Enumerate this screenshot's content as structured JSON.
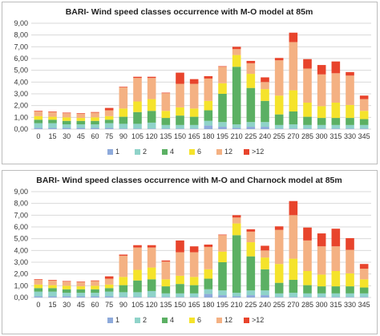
{
  "colors": {
    "1": "#8eaadb",
    "2": "#8fd3c9",
    "4": "#5bb063",
    "6": "#f5e32b",
    "12": "#f4b183",
    ">12": "#e8442c"
  },
  "chart_data": [
    {
      "type": "bar",
      "stacked": true,
      "title": "BARI- Wind speed classes occurrence with M-O model at 85m",
      "categories": [
        "0",
        "15",
        "30",
        "45",
        "60",
        "75",
        "90",
        "105",
        "120",
        "135",
        "150",
        "165",
        "180",
        "195",
        "210",
        "225",
        "240",
        "255",
        "270",
        "285",
        "300",
        "315",
        "330",
        "345"
      ],
      "ylim": [
        0,
        9
      ],
      "yticks": [
        "0,00",
        "1,00",
        "2,00",
        "3,00",
        "4,00",
        "5,00",
        "6,00",
        "7,00",
        "8,00",
        "9,00"
      ],
      "grid": true,
      "legend": "bottom",
      "series": [
        {
          "name": "1",
          "values": [
            0.1,
            0.1,
            0.1,
            0.1,
            0.1,
            0.1,
            0.05,
            0.05,
            0.05,
            0.05,
            0.05,
            0.05,
            0.3,
            0.2,
            0.1,
            0.2,
            0.2,
            0.05,
            0.05,
            0.05,
            0.05,
            0.05,
            0.05,
            0.05
          ]
        },
        {
          "name": "2",
          "values": [
            0.4,
            0.4,
            0.3,
            0.3,
            0.3,
            0.4,
            0.4,
            0.4,
            0.5,
            0.3,
            0.3,
            0.3,
            0.4,
            0.4,
            0.3,
            0.4,
            0.4,
            0.3,
            0.35,
            0.3,
            0.3,
            0.3,
            0.3,
            0.3
          ]
        },
        {
          "name": "4",
          "values": [
            0.3,
            0.3,
            0.3,
            0.3,
            0.3,
            0.3,
            0.6,
            1.0,
            1.0,
            0.6,
            0.8,
            0.7,
            0.9,
            2.4,
            4.9,
            2.9,
            1.8,
            0.9,
            1.1,
            0.7,
            0.6,
            0.6,
            0.6,
            0.5
          ]
        },
        {
          "name": "6",
          "values": [
            0.3,
            0.25,
            0.3,
            0.25,
            0.3,
            0.3,
            0.7,
            0.9,
            1.0,
            0.6,
            0.7,
            0.7,
            0.8,
            0.9,
            1.0,
            1.2,
            1.0,
            1.6,
            1.8,
            1.2,
            1.0,
            1.3,
            1.1,
            0.7
          ]
        },
        {
          "name": "12",
          "values": [
            0.4,
            0.4,
            0.35,
            0.35,
            0.4,
            0.5,
            1.8,
            2.0,
            1.8,
            1.5,
            2.0,
            2.1,
            1.9,
            1.4,
            0.5,
            0.9,
            0.6,
            3.0,
            4.1,
            2.9,
            2.7,
            2.5,
            2.5,
            1.0
          ]
        },
        {
          "name": ">12",
          "values": [
            0.05,
            0.05,
            0.05,
            0.05,
            0.05,
            0.2,
            0.05,
            0.1,
            0.1,
            0.05,
            0.95,
            0.4,
            0.2,
            0.05,
            0.2,
            0.2,
            0.4,
            0.2,
            0.8,
            0.8,
            0.8,
            1.0,
            0.3,
            0.3
          ]
        }
      ]
    },
    {
      "type": "bar",
      "stacked": true,
      "title": "BARI- Wind speed classes occurrence with M-O and Charnock model at 85m",
      "categories": [
        "0",
        "15",
        "30",
        "45",
        "60",
        "75",
        "90",
        "105",
        "120",
        "135",
        "150",
        "165",
        "180",
        "195",
        "210",
        "225",
        "240",
        "255",
        "270",
        "285",
        "300",
        "315",
        "330",
        "345"
      ],
      "ylim": [
        0,
        9
      ],
      "yticks": [
        "0,00",
        "1,00",
        "2,00",
        "3,00",
        "4,00",
        "5,00",
        "6,00",
        "7,00",
        "8,00",
        "9,00"
      ],
      "grid": true,
      "legend": "bottom",
      "series": [
        {
          "name": "1",
          "values": [
            0.1,
            0.1,
            0.1,
            0.1,
            0.1,
            0.1,
            0.05,
            0.05,
            0.05,
            0.05,
            0.05,
            0.05,
            0.3,
            0.2,
            0.1,
            0.2,
            0.2,
            0.05,
            0.05,
            0.05,
            0.05,
            0.05,
            0.05,
            0.05
          ]
        },
        {
          "name": "2",
          "values": [
            0.4,
            0.4,
            0.3,
            0.3,
            0.3,
            0.4,
            0.4,
            0.4,
            0.5,
            0.3,
            0.3,
            0.3,
            0.4,
            0.4,
            0.3,
            0.4,
            0.4,
            0.3,
            0.35,
            0.3,
            0.3,
            0.3,
            0.3,
            0.3
          ]
        },
        {
          "name": "4",
          "values": [
            0.3,
            0.3,
            0.3,
            0.3,
            0.3,
            0.3,
            0.6,
            1.0,
            1.0,
            0.6,
            0.8,
            0.7,
            0.9,
            2.4,
            4.9,
            2.9,
            1.8,
            0.9,
            1.1,
            0.7,
            0.6,
            0.6,
            0.6,
            0.5
          ]
        },
        {
          "name": "6",
          "values": [
            0.3,
            0.25,
            0.3,
            0.25,
            0.3,
            0.3,
            0.7,
            0.9,
            1.0,
            0.6,
            0.7,
            0.7,
            0.8,
            0.9,
            1.0,
            1.2,
            1.0,
            1.6,
            1.8,
            1.2,
            1.0,
            1.3,
            1.1,
            0.7
          ]
        },
        {
          "name": "12",
          "values": [
            0.4,
            0.4,
            0.35,
            0.35,
            0.4,
            0.5,
            1.8,
            1.9,
            1.7,
            1.5,
            2.0,
            2.1,
            1.9,
            1.4,
            0.5,
            0.9,
            0.6,
            2.9,
            3.7,
            2.6,
            2.4,
            2.1,
            2.0,
            0.9
          ]
        },
        {
          "name": ">12",
          "values": [
            0.05,
            0.05,
            0.05,
            0.05,
            0.05,
            0.2,
            0.1,
            0.2,
            0.2,
            0.1,
            1.0,
            0.5,
            0.2,
            0.05,
            0.2,
            0.2,
            0.4,
            0.3,
            1.2,
            1.1,
            1.1,
            1.5,
            1.0,
            0.4
          ]
        }
      ]
    }
  ]
}
